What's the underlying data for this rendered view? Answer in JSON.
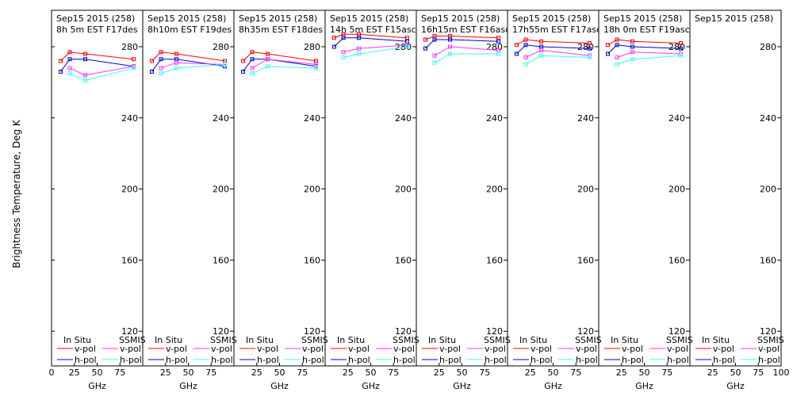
{
  "chart_data": {
    "type": "line",
    "ylabel": "Brightness Temperature, Deg K",
    "xlabel": "GHz",
    "xlim": [
      0,
      100
    ],
    "ylim": [
      110,
      295
    ],
    "yticks": [
      120,
      160,
      200,
      240,
      280
    ],
    "xticks": [
      0,
      25,
      50,
      75,
      100
    ],
    "xtick_labels": [
      "0",
      "25",
      "50",
      "75",
      "100"
    ],
    "legend": {
      "insitu_title": "In Situ",
      "ssmis_title": "SSMIS",
      "vpol_label": "v-pol",
      "hpol_label": "h-pol"
    },
    "colors": {
      "insitu_v": "#ff0000",
      "insitu_h": "#0000cc",
      "ssmis_v": "#ff33ff",
      "ssmis_h": "#33ffff"
    },
    "panels": [
      {
        "date": "Sep15 2015 (258)",
        "time": "8h 5m  EST F17des",
        "insitu_v": {
          "x": [
            10,
            20,
            37,
            90
          ],
          "y": [
            272,
            277,
            276,
            273
          ]
        },
        "insitu_h": {
          "x": [
            10,
            20,
            37,
            90
          ],
          "y": [
            266,
            273,
            273,
            269
          ]
        },
        "ssmis_v": {
          "x": [
            20,
            37,
            90
          ],
          "y": [
            268,
            264,
            269
          ]
        },
        "ssmis_h": {
          "x": [
            20,
            37,
            90
          ],
          "y": [
            265,
            261,
            268
          ]
        }
      },
      {
        "date": "Sep15 2015 (258)",
        "time": "8h10m  EST F19des",
        "insitu_v": {
          "x": [
            10,
            20,
            37,
            90
          ],
          "y": [
            272,
            277,
            276,
            272
          ]
        },
        "insitu_h": {
          "x": [
            10,
            20,
            37,
            90
          ],
          "y": [
            266,
            273,
            273,
            269
          ]
        },
        "ssmis_v": {
          "x": [
            20,
            37,
            90
          ],
          "y": [
            268,
            271,
            270
          ]
        },
        "ssmis_h": {
          "x": [
            20,
            37,
            90
          ],
          "y": [
            265,
            268,
            270
          ]
        }
      },
      {
        "date": "Sep15 2015 (258)",
        "time": "8h35m  EST F18des",
        "insitu_v": {
          "x": [
            10,
            20,
            37,
            90
          ],
          "y": [
            272,
            277,
            276,
            272
          ]
        },
        "insitu_h": {
          "x": [
            10,
            20,
            37,
            90
          ],
          "y": [
            266,
            273,
            273,
            269
          ]
        },
        "ssmis_v": {
          "x": [
            20,
            37,
            90
          ],
          "y": [
            268,
            273,
            270
          ]
        },
        "ssmis_h": {
          "x": [
            20,
            37,
            90
          ],
          "y": [
            265,
            269,
            268
          ]
        }
      },
      {
        "date": "Sep15 2015 (258)",
        "time": "14h 5m  EST F15asc",
        "insitu_v": {
          "x": [
            10,
            20,
            37,
            90
          ],
          "y": [
            285,
            287,
            287,
            285
          ]
        },
        "insitu_h": {
          "x": [
            10,
            20,
            37,
            90
          ],
          "y": [
            280,
            285,
            285,
            283
          ]
        },
        "ssmis_v": {
          "x": [
            20,
            37,
            90
          ],
          "y": [
            277,
            279,
            281
          ]
        },
        "ssmis_h": {
          "x": [
            20,
            37,
            90
          ],
          "y": [
            274,
            276,
            280
          ]
        }
      },
      {
        "date": "Sep15 2015 (258)",
        "time": "16h15m  EST F16asc",
        "insitu_v": {
          "x": [
            10,
            20,
            37,
            90
          ],
          "y": [
            284,
            286,
            286,
            285
          ]
        },
        "insitu_h": {
          "x": [
            10,
            20,
            37,
            90
          ],
          "y": [
            279,
            284,
            284,
            283
          ]
        },
        "ssmis_v": {
          "x": [
            20,
            37,
            90
          ],
          "y": [
            275,
            280,
            278
          ]
        },
        "ssmis_h": {
          "x": [
            20,
            37,
            90
          ],
          "y": [
            271,
            276,
            276
          ]
        }
      },
      {
        "date": "Sep15 2015 (258)",
        "time": "17h55m  EST F17asc",
        "insitu_v": {
          "x": [
            10,
            20,
            37,
            90
          ],
          "y": [
            281,
            284,
            283,
            282
          ]
        },
        "insitu_h": {
          "x": [
            10,
            20,
            37,
            90
          ],
          "y": [
            276,
            281,
            280,
            279
          ]
        },
        "ssmis_v": {
          "x": [
            20,
            37,
            90
          ],
          "y": [
            274,
            278,
            275
          ]
        },
        "ssmis_h": {
          "x": [
            20,
            37,
            90
          ],
          "y": [
            270,
            275,
            274
          ]
        }
      },
      {
        "date": "Sep15 2015 (258)",
        "time": "18h 0m  EST F19asc",
        "insitu_v": {
          "x": [
            10,
            20,
            37,
            90
          ],
          "y": [
            281,
            284,
            283,
            282
          ]
        },
        "insitu_h": {
          "x": [
            10,
            20,
            37,
            90
          ],
          "y": [
            276,
            281,
            280,
            279
          ]
        },
        "ssmis_v": {
          "x": [
            20,
            37,
            90
          ],
          "y": [
            274,
            277,
            276
          ]
        },
        "ssmis_h": {
          "x": [
            20,
            37,
            90
          ],
          "y": [
            270,
            273,
            275
          ]
        }
      },
      {
        "date": "Sep15 2015 (258)",
        "time": "",
        "insitu_v": {
          "x": [],
          "y": []
        },
        "insitu_h": {
          "x": [],
          "y": []
        },
        "ssmis_v": {
          "x": [],
          "y": []
        },
        "ssmis_h": {
          "x": [],
          "y": []
        }
      }
    ]
  }
}
